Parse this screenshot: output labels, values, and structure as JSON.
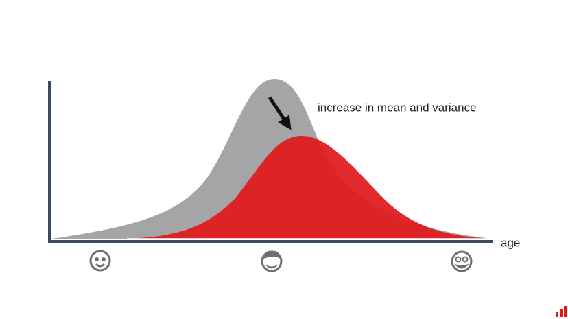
{
  "annotation": "increase in mean and variance",
  "x_axis_label": "age"
}
